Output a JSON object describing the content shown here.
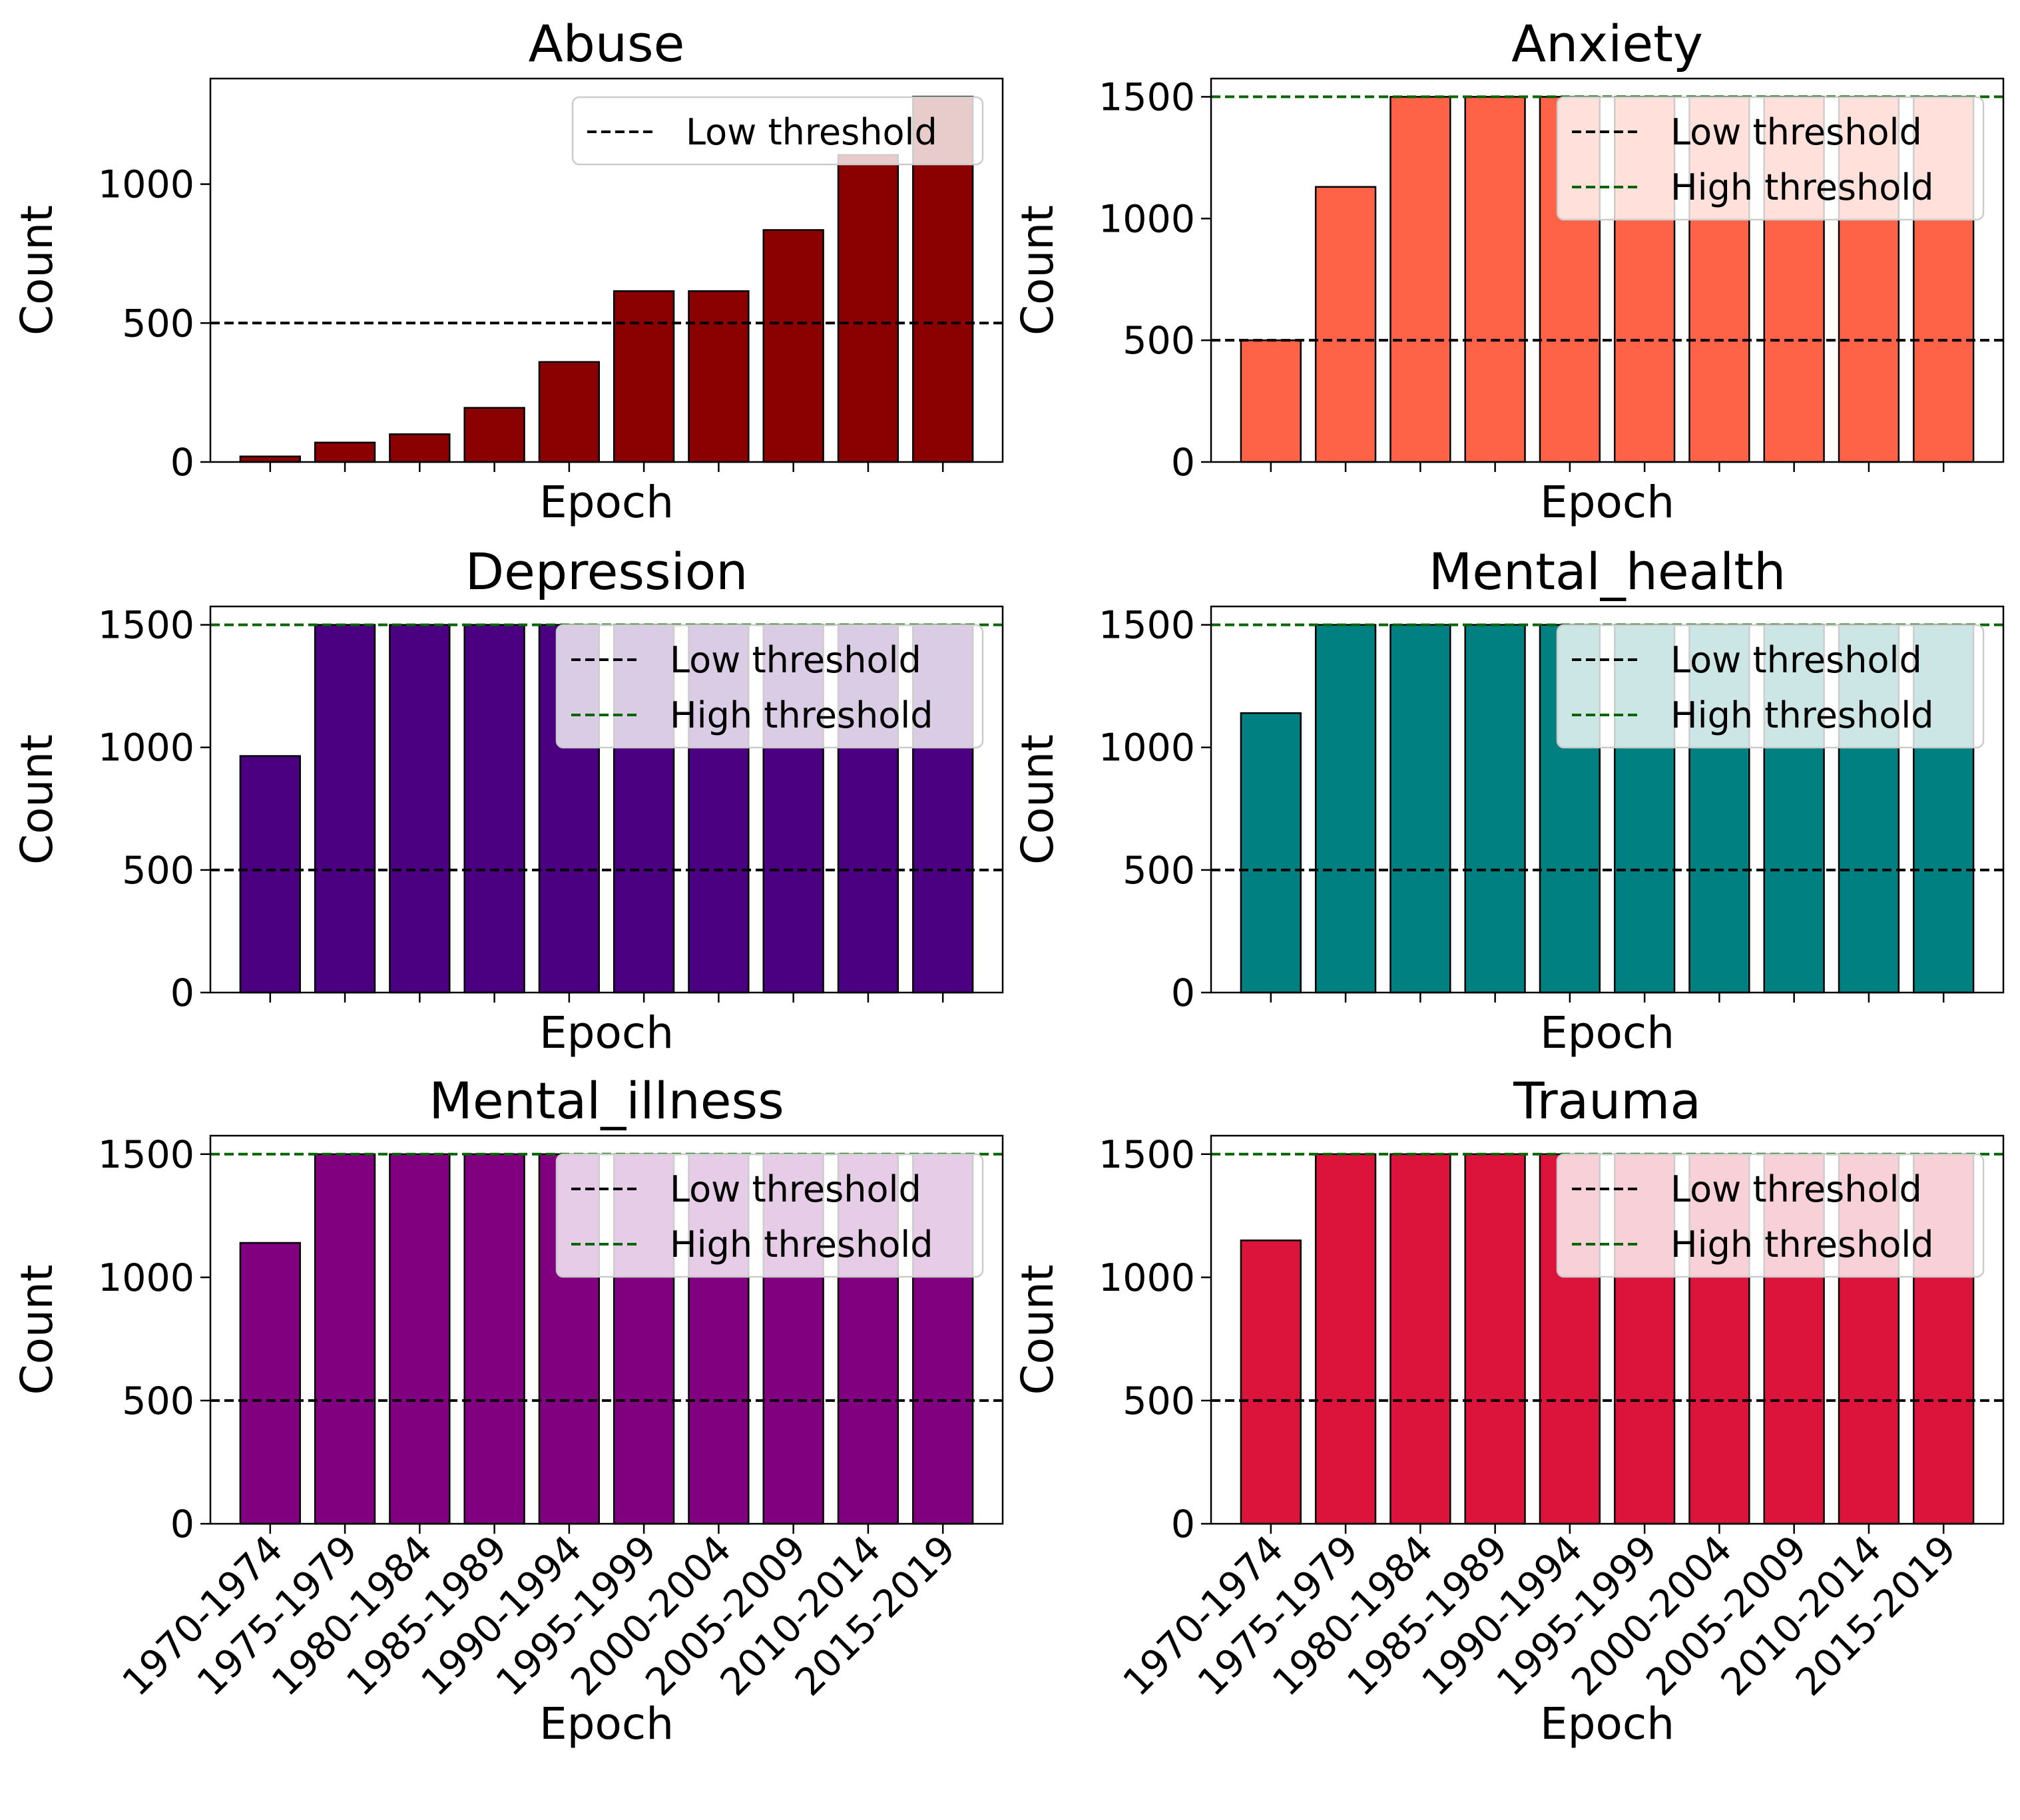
{
  "chart_data": [
    {
      "type": "bar",
      "title": "Abuse",
      "xlabel": "Epoch",
      "ylabel": "Count",
      "color": "#8b0000",
      "categories": [
        "1970-1974",
        "1975-1979",
        "1980-1984",
        "1985-1989",
        "1990-1994",
        "1995-1999",
        "2000-2004",
        "2005-2009",
        "2010-2014",
        "2015-2019"
      ],
      "values": [
        20,
        70,
        100,
        195,
        360,
        615,
        615,
        835,
        1105,
        1315
      ],
      "ylim": [
        0,
        1380
      ],
      "yticks": [
        0,
        500,
        1000
      ],
      "show_xticklabels": false,
      "thresholds": [
        {
          "name": "Low threshold",
          "value": 500,
          "color": "#000000"
        }
      ],
      "legend": "top-right"
    },
    {
      "type": "bar",
      "title": "Anxiety",
      "xlabel": "Epoch",
      "ylabel": "Count",
      "color": "#ff6347",
      "categories": [
        "1970-1974",
        "1975-1979",
        "1980-1984",
        "1985-1989",
        "1990-1994",
        "1995-1999",
        "2000-2004",
        "2005-2009",
        "2010-2014",
        "2015-2019"
      ],
      "values": [
        500,
        1130,
        1500,
        1500,
        1500,
        1500,
        1500,
        1500,
        1500,
        1500
      ],
      "ylim": [
        0,
        1575
      ],
      "yticks": [
        0,
        500,
        1000,
        1500
      ],
      "show_xticklabels": false,
      "thresholds": [
        {
          "name": "Low threshold",
          "value": 500,
          "color": "#000000"
        },
        {
          "name": "High threshold",
          "value": 1500,
          "color": "#006400"
        }
      ],
      "legend": "top-right"
    },
    {
      "type": "bar",
      "title": "Depression",
      "xlabel": "Epoch",
      "ylabel": "Count",
      "color": "#4b0082",
      "categories": [
        "1970-1974",
        "1975-1979",
        "1980-1984",
        "1985-1989",
        "1990-1994",
        "1995-1999",
        "2000-2004",
        "2005-2009",
        "2010-2014",
        "2015-2019"
      ],
      "values": [
        965,
        1500,
        1500,
        1500,
        1500,
        1500,
        1500,
        1500,
        1500,
        1500
      ],
      "ylim": [
        0,
        1575
      ],
      "yticks": [
        0,
        500,
        1000,
        1500
      ],
      "show_xticklabels": false,
      "thresholds": [
        {
          "name": "Low threshold",
          "value": 500,
          "color": "#000000"
        },
        {
          "name": "High threshold",
          "value": 1500,
          "color": "#006400"
        }
      ],
      "legend": "top-right"
    },
    {
      "type": "bar",
      "title": "Mental_health",
      "xlabel": "Epoch",
      "ylabel": "Count",
      "color": "#008080",
      "categories": [
        "1970-1974",
        "1975-1979",
        "1980-1984",
        "1985-1989",
        "1990-1994",
        "1995-1999",
        "2000-2004",
        "2005-2009",
        "2010-2014",
        "2015-2019"
      ],
      "values": [
        1140,
        1500,
        1500,
        1500,
        1500,
        1500,
        1500,
        1500,
        1500,
        1500
      ],
      "ylim": [
        0,
        1575
      ],
      "yticks": [
        0,
        500,
        1000,
        1500
      ],
      "show_xticklabels": false,
      "thresholds": [
        {
          "name": "Low threshold",
          "value": 500,
          "color": "#000000"
        },
        {
          "name": "High threshold",
          "value": 1500,
          "color": "#006400"
        }
      ],
      "legend": "top-right"
    },
    {
      "type": "bar",
      "title": "Mental_illness",
      "xlabel": "Epoch",
      "ylabel": "Count",
      "color": "#800080",
      "categories": [
        "1970-1974",
        "1975-1979",
        "1980-1984",
        "1985-1989",
        "1990-1994",
        "1995-1999",
        "2000-2004",
        "2005-2009",
        "2010-2014",
        "2015-2019"
      ],
      "values": [
        1140,
        1500,
        1500,
        1500,
        1500,
        1500,
        1500,
        1500,
        1500,
        1500
      ],
      "ylim": [
        0,
        1575
      ],
      "yticks": [
        0,
        500,
        1000,
        1500
      ],
      "show_xticklabels": true,
      "thresholds": [
        {
          "name": "Low threshold",
          "value": 500,
          "color": "#000000"
        },
        {
          "name": "High threshold",
          "value": 1500,
          "color": "#006400"
        }
      ],
      "legend": "top-right"
    },
    {
      "type": "bar",
      "title": "Trauma",
      "xlabel": "Epoch",
      "ylabel": "Count",
      "color": "#dc143c",
      "categories": [
        "1970-1974",
        "1975-1979",
        "1980-1984",
        "1985-1989",
        "1990-1994",
        "1995-1999",
        "2000-2004",
        "2005-2009",
        "2010-2014",
        "2015-2019"
      ],
      "values": [
        1150,
        1500,
        1500,
        1500,
        1500,
        1500,
        1500,
        1500,
        1500,
        1500
      ],
      "ylim": [
        0,
        1575
      ],
      "yticks": [
        0,
        500,
        1000,
        1500
      ],
      "show_xticklabels": true,
      "thresholds": [
        {
          "name": "Low threshold",
          "value": 500,
          "color": "#000000"
        },
        {
          "name": "High threshold",
          "value": 1500,
          "color": "#006400"
        }
      ],
      "legend": "top-right"
    }
  ]
}
